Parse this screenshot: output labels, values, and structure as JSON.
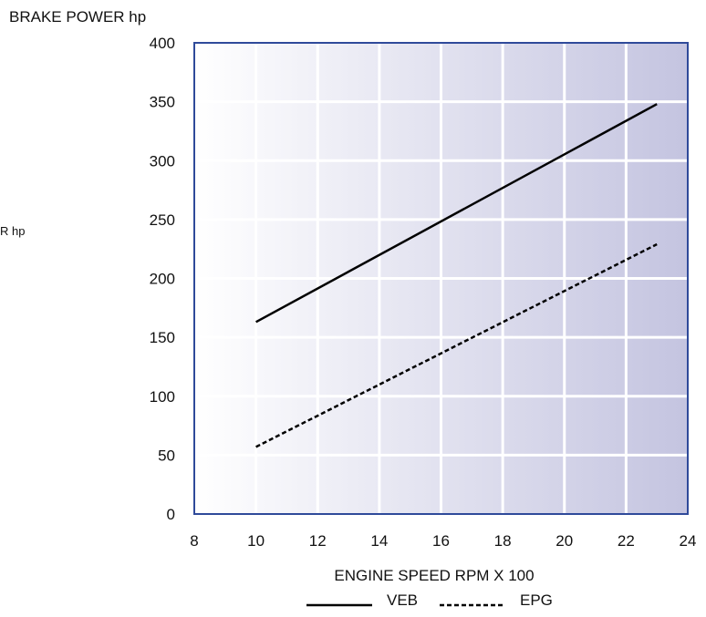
{
  "chart_data": {
    "type": "line",
    "ylabel": "BRAKE POWER hp",
    "side_label_fragment": "R hp",
    "xlabel": "ENGINE SPEED RPM X 100",
    "xlim": [
      8,
      24
    ],
    "ylim": [
      0,
      400
    ],
    "x_ticks": [
      8,
      10,
      12,
      14,
      16,
      18,
      20,
      22,
      24
    ],
    "y_ticks": [
      0,
      50,
      100,
      150,
      200,
      250,
      300,
      350,
      400
    ],
    "grid": true,
    "legend": "bottom",
    "series": [
      {
        "name": "VEB",
        "style": "solid",
        "x": [
          10,
          23
        ],
        "y": [
          163,
          348
        ]
      },
      {
        "name": "EPG",
        "style": "dashed",
        "x": [
          10,
          23
        ],
        "y": [
          57,
          229
        ]
      }
    ],
    "colors": {
      "frame": "#2f4a9a",
      "grid": "#ffffff",
      "gradient_start": "#ffffff",
      "gradient_end": "#c4c4e0",
      "line": "#000000"
    }
  }
}
